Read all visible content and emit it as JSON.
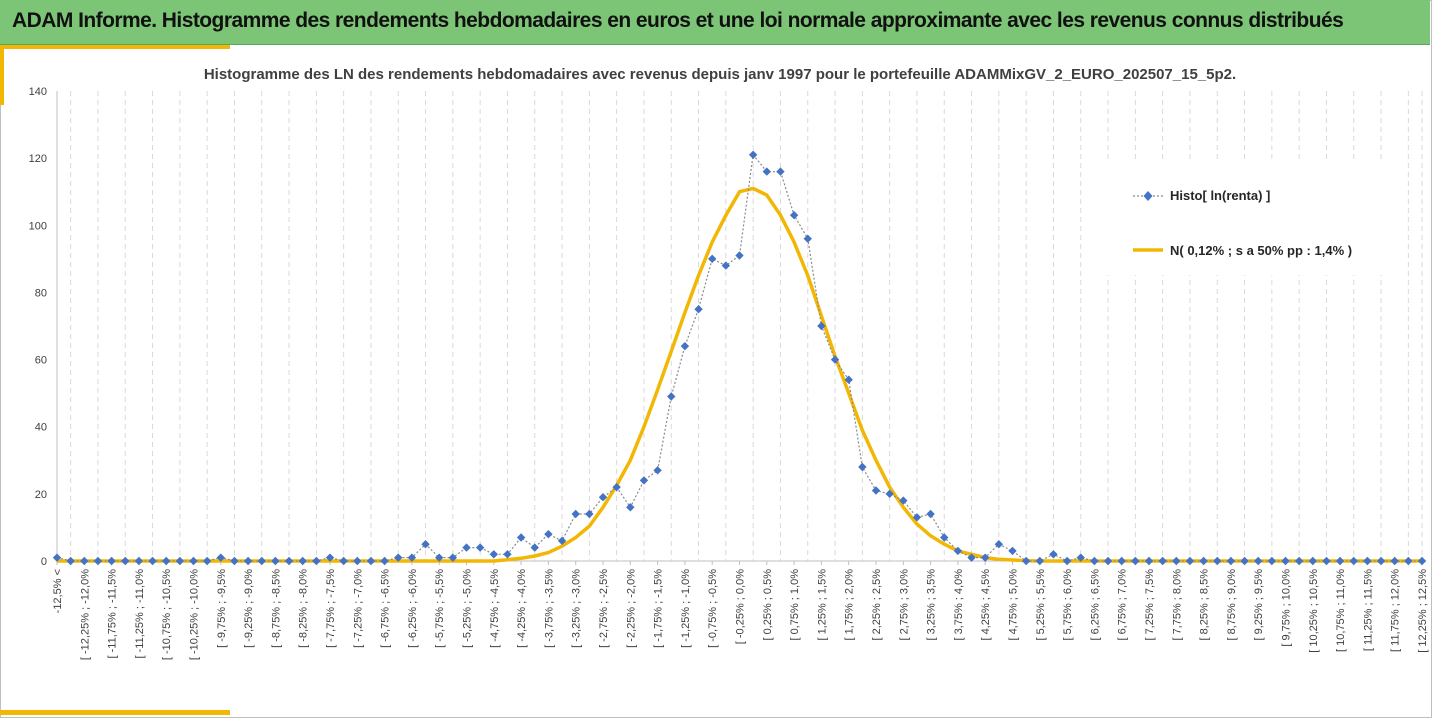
{
  "header": {
    "title": "ADAM Informe. Histogramme des rendements hebdomadaires en euros et une loi normale approximante avec les revenus connus distribués"
  },
  "colors": {
    "header_bg": "#7cc576",
    "accent": "#f2b705",
    "histo_series": "#4472c4",
    "normal_series": "#f2b705",
    "gridline": "#d9d9d9"
  },
  "chart_data": {
    "type": "line",
    "title": "Histogramme des LN des rendements hebdomadaires avec revenus depuis janv 1997 pour le portefeuille ADAMMixGV_2_EURO_202507_15_5p2.",
    "xlabel": "",
    "ylabel": "",
    "ylim": [
      0,
      140
    ],
    "y_ticks": [
      0,
      20,
      40,
      60,
      80,
      100,
      120,
      140
    ],
    "grid": "vertical dashed",
    "legend_position": "right",
    "categories": [
      "-12,5% <",
      "[ -12,25% ; -12,0%",
      "[ -11,75% ; -11,5%",
      "[ -11,25% ; -11,0%",
      "[ -10,75% ; -10,5%",
      "[ -10,25% ; -10,0%",
      "[ -9,75% ; -9,5%",
      "[ -9,25% ; -9,0%",
      "[ -8,75% ; -8,5%",
      "[ -8,25% ; -8,0%",
      "[ -7,75% ; -7,5%",
      "[ -7,25% ; -7,0%",
      "[ -6,75% ; -6,5%",
      "[ -6,25% ; -6,0%",
      "[ -5,75% ; -5,5%",
      "[ -5,25% ; -5,0%",
      "[ -4,75% ; -4,5%",
      "[ -4,25% ; -4,0%",
      "[ -3,75% ; -3,5%",
      "[ -3,25% ; -3,0%",
      "[ -2,75% ; -2,5%",
      "[ -2,25% ; -2,0%",
      "[ -1,75% ; -1,5%",
      "[ -1,25% ; -1,0%",
      "[ -0,75% ; -0,5%",
      "[ -0,25% ; 0,0%",
      "[ 0,25% ; 0,5%",
      "[ 0,75% ; 1,0%",
      "[ 1,25% ; 1,5%",
      "[ 1,75% ; 2,0%",
      "[ 2,25% ; 2,5%",
      "[ 2,75% ; 3,0%",
      "[ 3,25% ; 3,5%",
      "[ 3,75% ; 4,0%",
      "[ 4,25% ; 4,5%",
      "[ 4,75% ; 5,0%",
      "[ 5,25% ; 5,5%",
      "[ 5,75% ; 6,0%",
      "[ 6,25% ; 6,5%",
      "[ 6,75% ; 7,0%",
      "[ 7,25% ; 7,5%",
      "[ 7,75% ; 8,0%",
      "[ 8,25% ; 8,5%",
      "[ 8,75% ; 9,0%",
      "[ 9,25% ; 9,5%",
      "[ 9,75% ; 10,0%",
      "[ 10,25% ; 10,5%",
      "[ 10,75% ; 11,0%",
      "[ 11,25% ; 11,5%",
      "[ 11,75% ; 12,0%",
      "[ 12,25% ; 12,5%"
    ],
    "x": [
      -12.5,
      -12.25,
      -12,
      -11.75,
      -11.5,
      -11.25,
      -11,
      -10.75,
      -10.5,
      -10.25,
      -10,
      -9.75,
      -9.5,
      -9.25,
      -9,
      -8.75,
      -8.5,
      -8.25,
      -8,
      -7.75,
      -7.5,
      -7.25,
      -7,
      -6.75,
      -6.5,
      -6.25,
      -6,
      -5.75,
      -5.5,
      -5.25,
      -5,
      -4.75,
      -4.5,
      -4.25,
      -4,
      -3.75,
      -3.5,
      -3.25,
      -3,
      -2.75,
      -2.5,
      -2.25,
      -2,
      -1.75,
      -1.5,
      -1.25,
      -1,
      -0.75,
      -0.5,
      -0.25,
      0,
      0.25,
      0.5,
      0.75,
      1,
      1.25,
      1.5,
      1.75,
      2,
      2.25,
      2.5,
      2.75,
      3,
      3.25,
      3.5,
      3.75,
      4,
      4.25,
      4.5,
      4.75,
      5,
      5.25,
      5.5,
      5.75,
      6,
      6.25,
      6.5,
      6.75,
      7,
      7.25,
      7.5,
      7.75,
      8,
      8.25,
      8.5,
      8.75,
      9,
      9.25,
      9.5,
      9.75,
      10,
      10.25,
      10.5,
      10.75,
      11,
      11.25,
      11.5,
      11.75,
      12,
      12.25,
      12.5
    ],
    "series": [
      {
        "name": "Histo[ ln(renta) ]",
        "style": "dotted-diamond",
        "values": [
          1,
          0,
          0,
          0,
          0,
          0,
          0,
          0,
          0,
          0,
          0,
          0,
          1,
          0,
          0,
          0,
          0,
          0,
          0,
          0,
          1,
          0,
          0,
          0,
          0,
          1,
          1,
          5,
          1,
          1,
          4,
          4,
          2,
          2,
          7,
          4,
          8,
          6,
          14,
          14,
          19,
          22,
          16,
          24,
          27,
          49,
          64,
          75,
          90,
          88,
          91,
          121,
          116,
          116,
          103,
          96,
          70,
          60,
          54,
          28,
          21,
          20,
          18,
          13,
          14,
          7,
          3,
          1,
          1,
          5,
          3,
          0,
          0,
          2,
          0,
          1,
          0,
          0,
          0,
          0,
          0,
          0,
          0,
          0,
          0,
          0,
          0,
          0,
          0,
          0,
          0,
          0,
          0,
          0,
          0,
          0,
          0,
          0,
          0,
          0,
          0
        ]
      },
      {
        "name": "N( 0,12% ; s a 50% pp : 1,4% )",
        "style": "solid",
        "values": [
          0,
          0,
          0,
          0,
          0,
          0,
          0,
          0,
          0,
          0,
          0,
          0,
          0,
          0,
          0,
          0,
          0,
          0,
          0,
          0,
          0,
          0,
          0,
          0,
          0,
          0,
          0,
          0,
          0,
          0,
          0,
          0,
          0,
          0.4,
          0.8,
          1.5,
          2.5,
          4.4,
          7,
          10.4,
          16,
          22.5,
          30,
          40,
          51,
          62.5,
          74,
          85,
          95,
          103,
          110,
          111,
          109,
          103,
          95,
          85,
          73,
          61,
          50,
          39,
          30,
          22,
          16,
          11,
          7.5,
          5,
          3,
          2,
          1,
          0.5,
          0.3,
          0.1,
          0,
          0,
          0,
          0,
          0,
          0,
          0,
          0,
          0,
          0,
          0,
          0,
          0,
          0,
          0,
          0,
          0,
          0,
          0,
          0,
          0,
          0,
          0,
          0,
          0,
          0,
          0,
          0,
          0
        ]
      }
    ]
  }
}
